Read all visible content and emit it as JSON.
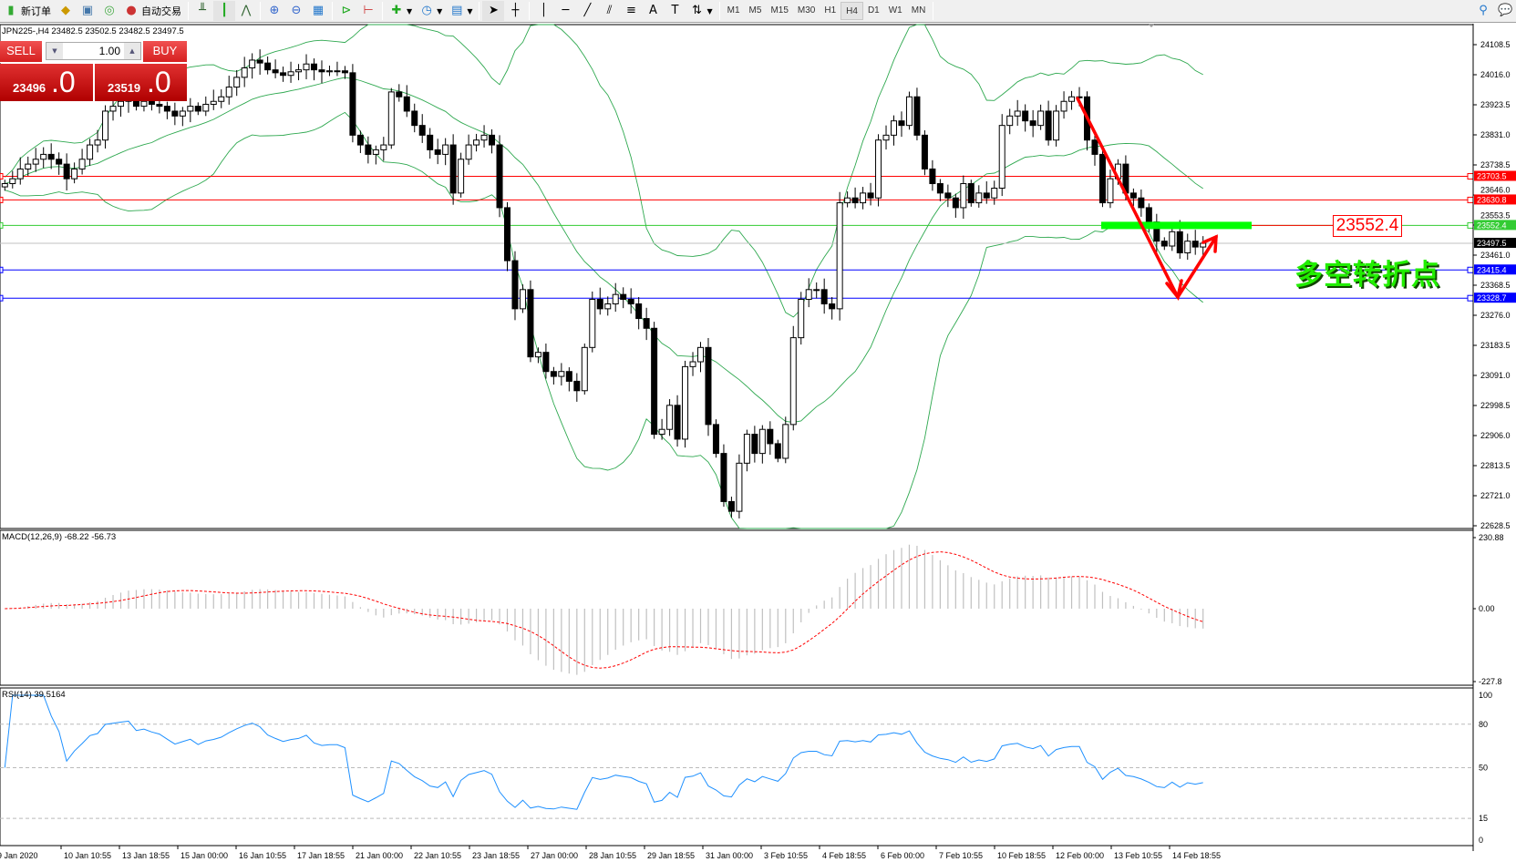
{
  "toolbar": {
    "new_order": "新订单",
    "auto_trading": "自动交易",
    "timeframes": [
      "M1",
      "M5",
      "M15",
      "M30",
      "H1",
      "H4",
      "D1",
      "W1",
      "MN"
    ],
    "active_timeframe": "H4"
  },
  "chart": {
    "title": "JPN225-,H4  23482.5 23502.5 23482.5 23497.5",
    "macd_label": "MACD(12,26,9) -68.22 -56.73",
    "rsi_label": "RSI(14) 39.5164"
  },
  "trade_panel": {
    "sell_label": "SELL",
    "buy_label": "BUY",
    "lot": "1.00",
    "sell_price_main": "23496",
    "sell_price_frac": ".0",
    "buy_price_main": "23519",
    "buy_price_frac": ".0"
  },
  "annotations": {
    "level_box": "23552.4",
    "text": "多空转折点"
  },
  "chart_data": {
    "type": "candlestick",
    "symbol": "JPN225-",
    "timeframe": "H4",
    "closes": [
      23681,
      23696,
      23726,
      23741,
      23756,
      23771,
      23756,
      23741,
      23696,
      23726,
      23756,
      23800,
      23815,
      23904,
      23919,
      23934,
      23948,
      23919,
      23934,
      23925,
      23919,
      23904,
      23889,
      23904,
      23919,
      23904,
      23925,
      23934,
      23948,
      23978,
      24008,
      24037,
      24061,
      24052,
      24031,
      24022,
      24014,
      24025,
      24031,
      24049,
      24031,
      24025,
      24028,
      24028,
      24022,
      23830,
      23800,
      23771,
      23785,
      23800,
      23963,
      23948,
      23904,
      23860,
      23830,
      23785,
      23771,
      23800,
      23652,
      23756,
      23800,
      23815,
      23830,
      23800,
      23607,
      23444,
      23296,
      23355,
      23148,
      23162,
      23103,
      23088,
      23103,
      23073,
      23044,
      23177,
      23325,
      23296,
      23311,
      23340,
      23325,
      23311,
      23266,
      23236,
      22910,
      22925,
      22999,
      22895,
      23118,
      23133,
      23177,
      22940,
      22851,
      22703,
      22673,
      22821,
      22910,
      22851,
      22925,
      22881,
      22836,
      22940,
      23207,
      23325,
      23355,
      23355,
      23311,
      23296,
      23622,
      23637,
      23622,
      23652,
      23637,
      23815,
      23830,
      23874,
      23860,
      23948,
      23830,
      23726,
      23681,
      23652,
      23637,
      23607,
      23681,
      23622,
      23652,
      23637,
      23667,
      23860,
      23889,
      23904,
      23874,
      23860,
      23904,
      23815,
      23904,
      23934,
      23948,
      23948,
      23815,
      23771,
      23622,
      23696,
      23741,
      23652,
      23637,
      23607,
      23563,
      23504,
      23489,
      23533,
      23468,
      23504,
      23486,
      23497.5
    ],
    "price_axis": [
      "24108.5",
      "24016.0",
      "23923.5",
      "23831.0",
      "23738.5",
      "23646.0",
      "23553.5",
      "23461.0",
      "23368.5",
      "23276.0",
      "23183.5",
      "23091.0",
      "22998.5",
      "22906.0",
      "22813.5",
      "22721.0",
      "22628.5"
    ],
    "price_range": [
      22628.5,
      24108.5
    ],
    "levels": [
      {
        "value": "23703.5",
        "color": "#ff0000"
      },
      {
        "value": "23630.8",
        "color": "#ff0000"
      },
      {
        "value": "23552.4",
        "color": "#33cc33"
      },
      {
        "value": "23497.5",
        "color": "#000000"
      },
      {
        "value": "23415.4",
        "color": "#0000ff"
      },
      {
        "value": "23328.7",
        "color": "#0000ff"
      }
    ],
    "macd_axis": [
      "230.88",
      "0.00",
      "-227.8"
    ],
    "macd_range": [
      -227.8,
      230.88
    ],
    "rsi_axis": [
      "100",
      "80",
      "50",
      "15",
      "0"
    ],
    "rsi_levels": [
      80,
      50,
      15
    ],
    "time_axis": [
      "9 Jan 2020",
      "10 Jan 10:55",
      "13 Jan 18:55",
      "15 Jan 00:00",
      "16 Jan 10:55",
      "17 Jan 18:55",
      "21 Jan 00:00",
      "22 Jan 10:55",
      "23 Jan 18:55",
      "27 Jan 00:00",
      "28 Jan 10:55",
      "29 Jan 18:55",
      "31 Jan 00:00",
      "3 Feb 10:55",
      "4 Feb 18:55",
      "6 Feb 00:00",
      "7 Feb 10:55",
      "10 Feb 18:55",
      "12 Feb 00:00",
      "13 Feb 10:55",
      "14 Feb 18:55"
    ],
    "colors": {
      "bollinger": "#2ea84f",
      "macd_hist": "#c0c0c0",
      "macd_signal": "#ff0000",
      "rsi": "#1e90ff",
      "bid": "#c0c0c0"
    }
  }
}
